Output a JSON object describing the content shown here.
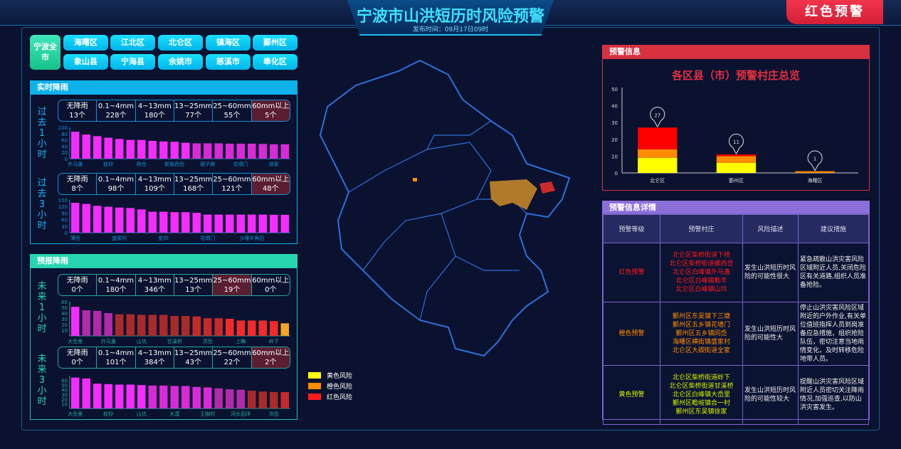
{
  "header": {
    "title": "宁波市山洪短历时风险预警",
    "publish_time": "发布时间：09月17日09时",
    "alert_level": "红色预警"
  },
  "districts": {
    "all": "宁波全市",
    "items": [
      "海曙区",
      "江北区",
      "北仑区",
      "镇海区",
      "鄞州区",
      "象山县",
      "宁海县",
      "余姚市",
      "慈溪市",
      "奉化区"
    ]
  },
  "realtime": {
    "title": "实时降雨",
    "past1h": {
      "label": "过去1小时",
      "stats": [
        [
          "无降雨",
          "13个"
        ],
        [
          "0.1~4mm",
          "228个"
        ],
        [
          "4~13mm",
          "180个"
        ],
        [
          "13~25mm",
          "77个"
        ],
        [
          "25~60mm",
          "55个"
        ],
        [
          "60mm以上",
          "5个"
        ]
      ],
      "highlight": 5
    },
    "past3h": {
      "label": "过去3小时",
      "stats": [
        [
          "无降雨",
          "8个"
        ],
        [
          "0.1~4mm",
          "98个"
        ],
        [
          "4~13mm",
          "109个"
        ],
        [
          "13~25mm",
          "168个"
        ],
        [
          "25~60mm",
          "121个"
        ],
        [
          "60mm以上",
          "48个"
        ]
      ],
      "highlight": 5
    }
  },
  "forecast": {
    "title": "预报降雨",
    "next1h": {
      "label": "未来1小时",
      "stats": [
        [
          "无降雨",
          "0个"
        ],
        [
          "0.1~4mm",
          "180个"
        ],
        [
          "4~13mm",
          "346个"
        ],
        [
          "13~25mm",
          "13个"
        ],
        [
          "25~60mm",
          "19个"
        ],
        [
          "60mm以上",
          "0个"
        ]
      ],
      "highlight": 4
    },
    "next3h": {
      "label": "未来3小时",
      "stats": [
        [
          "无降雨",
          "0个"
        ],
        [
          "0.1~4mm",
          "101个"
        ],
        [
          "4~13mm",
          "384个"
        ],
        [
          "13~25mm",
          "43个"
        ],
        [
          "25~60mm",
          "22个"
        ],
        [
          "60mm以上",
          "2个"
        ]
      ],
      "highlight": 5
    }
  },
  "chart_data": [
    {
      "type": "bar",
      "id": "past1h",
      "ylim": [
        0,
        100
      ],
      "ticks": [
        0,
        20,
        40,
        60,
        80,
        100
      ],
      "categories": [
        "外马蛊",
        "",
        "",
        "蛇仰",
        "",
        "",
        "杨岙",
        "",
        "",
        "新路西岙",
        "",
        "",
        "硬子跟",
        "",
        "",
        "花墙门",
        "",
        "",
        "徐家",
        ""
      ],
      "values": [
        86,
        77,
        72,
        67,
        63,
        60,
        60,
        57,
        55,
        54,
        51,
        49,
        49,
        49,
        48,
        48,
        48,
        47,
        46,
        46
      ],
      "colors": [
        "#f52cff",
        "#f52cff",
        "#f52cff",
        "#f52cff",
        "#f52cff",
        "#f52cff",
        "#f52cff",
        "#f52cff",
        "#f52cff",
        "#f52cff",
        "#f52cff",
        "#d92ad8",
        "#d92ad8",
        "#d92ad8",
        "#d92ad8",
        "#d92ad8",
        "#d92ad8",
        "#d92ad8",
        "#d92ad8",
        "#d92ad8"
      ]
    },
    {
      "type": "bar",
      "id": "past3h",
      "ylim": [
        0,
        150
      ],
      "ticks": [
        0,
        30,
        60,
        90,
        120,
        150
      ],
      "categories": [
        "薄岙",
        "",
        "",
        "",
        "盛家村",
        "",
        "",
        "",
        "蛇仰",
        "",
        "",
        "",
        "花墙门",
        "",
        "",
        "",
        "沙堰羊角田",
        "",
        "",
        ""
      ],
      "values": [
        137,
        132,
        123,
        119,
        115,
        113,
        107,
        96,
        96,
        94,
        94,
        91,
        83,
        83,
        83,
        83,
        83,
        83,
        82,
        82
      ],
      "colors": [
        "#f52cff",
        "#f52cff",
        "#f52cff",
        "#f52cff",
        "#f52cff",
        "#f52cff",
        "#f52cff",
        "#f52cff",
        "#f52cff",
        "#f52cff",
        "#f52cff",
        "#f52cff",
        "#f52cff",
        "#f52cff",
        "#f52cff",
        "#f52cff",
        "#f52cff",
        "#f52cff",
        "#f52cff",
        "#f52cff"
      ]
    },
    {
      "type": "bar",
      "id": "next1h",
      "ylim": [
        0,
        60
      ],
      "ticks": [
        10,
        20,
        30,
        40,
        50,
        60
      ],
      "categories": [
        "大岙里",
        "",
        "",
        "外马蛊",
        "",
        "",
        "山坑",
        "",
        "",
        "甘溪桥",
        "",
        "",
        "洪岙",
        "",
        "",
        "上畴",
        "",
        "",
        "岭下",
        ""
      ],
      "values": [
        51,
        45,
        44,
        40,
        38,
        38,
        37,
        37,
        37,
        35,
        35,
        34,
        31,
        31,
        30,
        27,
        27,
        27,
        26,
        22
      ],
      "colors": [
        "#f52cff",
        "#b02aaa",
        "#b02aaa",
        "#b02aaa",
        "#a82a2a",
        "#a82a2a",
        "#a82a2a",
        "#a82a2a",
        "#a82a2a",
        "#a82a2a",
        "#a82a2a",
        "#c52a2a",
        "#c52a2a",
        "#c52a2a",
        "#f22a2a",
        "#f22a2a",
        "#f22a2a",
        "#f22a2a",
        "#f22a2a",
        "#f5a623"
      ]
    },
    {
      "type": "bar",
      "id": "next3h",
      "ylim": [
        0,
        70
      ],
      "ticks": [
        10,
        20,
        30,
        40,
        50,
        60
      ],
      "categories": [
        "大岙里",
        "",
        "",
        "蛇仰",
        "",
        "",
        "山坑",
        "",
        "",
        "大漠",
        "",
        "",
        "王樹村",
        "",
        "",
        "河头田洋",
        "",
        "",
        "洪岙",
        ""
      ],
      "values": [
        66,
        64,
        53,
        52,
        51,
        51,
        50,
        49,
        49,
        48,
        48,
        46,
        45,
        43,
        41,
        40,
        38,
        36,
        35,
        35
      ],
      "colors": [
        "#f52cff",
        "#f52cff",
        "#f52cff",
        "#f52cff",
        "#f52cff",
        "#f52cff",
        "#f52cff",
        "#d92ad8",
        "#d92ad8",
        "#d92ad8",
        "#d92ad8",
        "#d92ad8",
        "#d92ad8",
        "#b02aaa",
        "#b02aaa",
        "#b02aaa",
        "#a82a2a",
        "#a82a2a",
        "#a82a2a",
        "#c52a2a"
      ]
    },
    {
      "type": "bar",
      "id": "warning",
      "title": "各区县（市）预警村庄总览",
      "ylim": [
        0,
        50
      ],
      "ticks": [
        0,
        10,
        20,
        30,
        40,
        50
      ],
      "categories": [
        "北仑区",
        "鄞州区",
        "海曙区"
      ],
      "series": [
        {
          "name": "黄色",
          "values": [
            9,
            6,
            0
          ],
          "color": "#ffff00"
        },
        {
          "name": "橙色",
          "values": [
            5,
            4,
            1
          ],
          "color": "#ff8c00"
        },
        {
          "name": "红色",
          "values": [
            13,
            1,
            0
          ],
          "color": "#ff0000"
        }
      ],
      "totals": [
        27,
        11,
        1
      ]
    }
  ],
  "map_legend": [
    {
      "label": "黄色风险",
      "color": "#ffff00"
    },
    {
      "label": "橙色风险",
      "color": "#ff8c00"
    },
    {
      "label": "红色风险",
      "color": "#ff1a1a"
    }
  ],
  "warning_info": {
    "title": "预警信息"
  },
  "warning_detail": {
    "title": "预警信息详情",
    "headers": [
      "预警等级",
      "预警村庄",
      "风险描述",
      "建议措施"
    ],
    "rows": [
      {
        "level": "红色预警",
        "color": "#ff1a1a",
        "villages": [
          "北仑区柴桥街道下杨",
          "北仑区柴桥街道螺西岙",
          "北仑区白峰镇外马蛊",
          "北仑区白峰镇勤丰",
          "北仑区白峰镇山坑"
        ],
        "risk": "发生山洪短历时风险的可能性很大",
        "advice": "紧急疏散山洪灾害风险区域附近人员,关闭危险区有关道路,组织人员准备抢险。"
      },
      {
        "level": "橙色预警",
        "color": "#ff8c00",
        "villages": [
          "鄞州区东吴镇下三塘",
          "鄞州区五乡镇花墙门",
          "鄞州区五乡镇同岙",
          "海曙区横街镇盛家村",
          "北仑区大碶街道全家"
        ],
        "risk": "发生山洪短历时风险的可能性大",
        "advice": "停止山洪灾害风险区域附近的户外作业,有关单位值班指挥人员到岗准备应急措施，组织抢险队伍，密切注意当地雨情变化，及时转移危险地带人员。"
      },
      {
        "level": "黄色预警",
        "color": "#d4f000",
        "villages": [
          "北仑区柴桥街道岭下",
          "北仑区柴桥街道甘溪桥",
          "北仑区白峰镇大岙里",
          "鄞州区瞻岐镇合一村",
          "鄞州区东吴镇徐家"
        ],
        "risk": "发生山洪短历时风险的可能性较大",
        "advice": "提醒山洪灾害风险区域附近人员密切关注降雨情况,加强巡查,以防山洪灾害发生。"
      }
    ]
  }
}
